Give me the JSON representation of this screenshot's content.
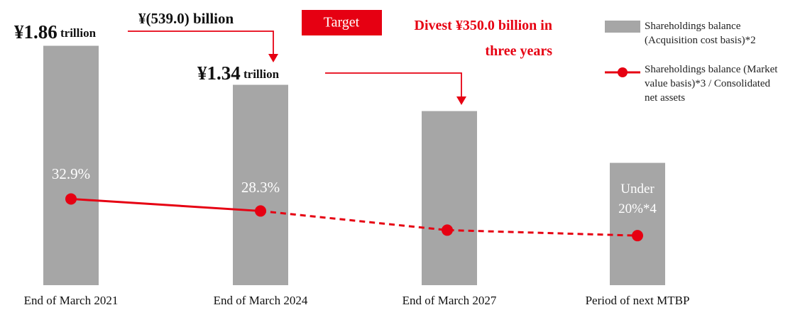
{
  "chart_data": {
    "type": "bar",
    "categories": [
      "End of March 2021",
      "End of March 2024",
      "End of March 2027",
      "Period of next MTBP"
    ],
    "series": [
      {
        "name": "Shareholdings balance (Acquisition cost basis)*2",
        "color": "#a6a6a6",
        "values": [
          1.86,
          1.34,
          0.99,
          0.3
        ],
        "value_labels": [
          "¥1.86 trillion",
          "¥1.34 trillion",
          null,
          null
        ]
      },
      {
        "name": "Shareholdings balance (Market value basis)*3 / Consolidated net assets",
        "color": "#e60012",
        "type": "line",
        "axis": "y2",
        "values": [
          32.9,
          28.3,
          21.0,
          18.9
        ],
        "value_labels": [
          "32.9%",
          "28.3%",
          null,
          "Under 20%*4"
        ]
      }
    ],
    "ylim": [
      -1.33,
      2.47
    ],
    "y2lim": [
      0,
      108.8
    ],
    "annotations": [
      "¥(539.0) billion",
      "Target",
      "Divest ¥350.0 billion in three years"
    ]
  }
}
